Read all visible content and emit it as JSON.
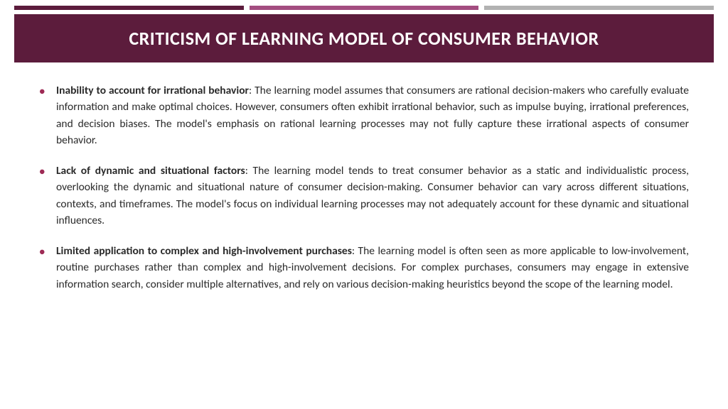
{
  "colors": {
    "bar1": "#5c1c3c",
    "bar2": "#a34d80",
    "bar3": "#b2b2b2",
    "title_band_bg": "#5c1c3c",
    "title_text": "#ffffff",
    "bullet_marker": "#9e2b55",
    "body_text": "#2a2a2a"
  },
  "layout": {
    "title_fontsize": 26,
    "body_fontsize": 15.5
  },
  "title": "CRITICISM OF LEARNING MODEL OF CONSUMER BEHAVIOR",
  "bullets": [
    {
      "heading": "Inability to account for irrational behavior",
      "text": ": The learning model assumes that consumers are rational decision-makers who carefully evaluate information and make optimal choices. However, consumers often exhibit irrational behavior, such as impulse buying, irrational preferences, and decision biases. The model's emphasis on rational learning processes may not fully capture these irrational aspects of consumer behavior."
    },
    {
      "heading": "Lack of dynamic and situational factors",
      "text": ": The learning model tends to treat consumer behavior as a static and individualistic process, overlooking the dynamic and situational nature of consumer decision-making. Consumer behavior can vary across different situations, contexts, and timeframes. The model's focus on individual learning processes may not adequately account for these dynamic and situational influences."
    },
    {
      "heading": "Limited application to complex and high-involvement purchases",
      "text": ": The learning model is often seen as more applicable to low-involvement, routine purchases rather than complex and high-involvement decisions. For complex purchases, consumers may engage in extensive information search, consider multiple alternatives, and rely on various decision-making heuristics beyond the scope of the learning model."
    }
  ]
}
